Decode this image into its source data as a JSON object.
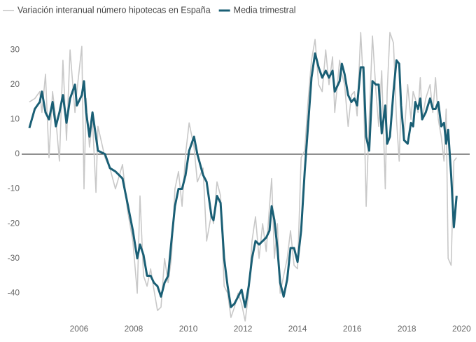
{
  "chart_data": {
    "type": "line",
    "x": [
      2004.18,
      2004.38,
      2004.56,
      2004.64,
      2004.77,
      2004.9,
      2005.03,
      2005.15,
      2005.28,
      2005.41,
      2005.54,
      2005.67,
      2005.85,
      2005.92,
      2006.1,
      2006.18,
      2006.26,
      2006.38,
      2006.49,
      2006.62,
      2006.69,
      2006.95,
      2007.13,
      2007.33,
      2007.59,
      2007.77,
      2007.97,
      2008.13,
      2008.23,
      2008.36,
      2008.49,
      2008.62,
      2008.74,
      2008.87,
      2009.0,
      2009.13,
      2009.26,
      2009.38,
      2009.51,
      2009.64,
      2009.77,
      2009.9,
      2010.03,
      2010.21,
      2010.33,
      2010.54,
      2010.67,
      2010.85,
      2010.92,
      2011.05,
      2011.18,
      2011.31,
      2011.44,
      2011.56,
      2011.69,
      2011.82,
      2011.95,
      2012.08,
      2012.21,
      2012.33,
      2012.46,
      2012.59,
      2012.72,
      2012.85,
      2012.97,
      2013.05,
      2013.15,
      2013.26,
      2013.36,
      2013.49,
      2013.62,
      2013.74,
      2013.87,
      2014.0,
      2014.13,
      2014.26,
      2014.38,
      2014.51,
      2014.64,
      2014.77,
      2014.9,
      2015.03,
      2015.15,
      2015.28,
      2015.36,
      2015.54,
      2015.62,
      2015.72,
      2015.85,
      2015.97,
      2016.08,
      2016.18,
      2016.31,
      2016.41,
      2016.51,
      2016.62,
      2016.74,
      2016.87,
      2016.97,
      2017.08,
      2017.21,
      2017.28,
      2017.38,
      2017.51,
      2017.62,
      2017.72,
      2017.79,
      2017.9,
      2018.03,
      2018.15,
      2018.23,
      2018.31,
      2018.41,
      2018.49,
      2018.56,
      2018.69,
      2018.85,
      2018.95,
      2019.05,
      2019.15,
      2019.26,
      2019.36,
      2019.44,
      2019.51,
      2019.62,
      2019.72,
      2019.82
    ],
    "series": [
      {
        "name": "Variación interanual número hipotecas en España",
        "color": "#c8c8c8",
        "width": 1.6,
        "values": [
          15,
          16,
          18,
          12,
          23,
          -1,
          18,
          10,
          -2,
          27,
          4,
          30,
          12,
          18,
          31,
          -10,
          16,
          2,
          10,
          -11,
          8,
          -1,
          -4,
          -10,
          -3,
          -16,
          -25,
          -40,
          -12,
          -35,
          -38,
          -33,
          -39,
          -45,
          -44,
          -30,
          -37,
          -30,
          -10,
          -5,
          -15,
          0,
          9,
          2,
          -8,
          -4,
          -25,
          -17,
          -20,
          -8,
          -12,
          -38,
          -40,
          -47,
          -44,
          -40,
          -43,
          -48,
          -40,
          -25,
          -18,
          -30,
          -20,
          -28,
          -15,
          -7,
          -30,
          -20,
          -40,
          -35,
          -30,
          -22,
          -32,
          -33,
          -1,
          1,
          15,
          27,
          33,
          20,
          18,
          30,
          20,
          28,
          12,
          27,
          23,
          20,
          8,
          17,
          18,
          11,
          35,
          20,
          -15,
          10,
          34,
          18,
          8,
          24,
          -10,
          18,
          35,
          32,
          10,
          -2,
          15,
          5,
          20,
          10,
          18,
          16,
          12,
          22,
          10,
          16,
          20,
          12,
          22,
          10,
          5,
          -2,
          13,
          -30,
          -32,
          -2,
          -1
        ]
      },
      {
        "name": "Media trimestral",
        "color": "#1a5f75",
        "width": 3,
        "values": [
          7.5,
          13,
          15,
          18,
          12,
          10,
          15,
          8,
          12,
          17,
          9,
          16,
          20,
          14,
          17,
          21,
          12,
          5,
          12,
          5,
          1,
          0,
          -4,
          -5,
          -7,
          -14,
          -22,
          -30,
          -26,
          -29,
          -35,
          -35,
          -37,
          -38,
          -41,
          -37,
          -35,
          -25,
          -15,
          -10,
          -10,
          -6,
          1,
          5,
          0,
          -6,
          -8,
          -18,
          -19,
          -12,
          -14,
          -30,
          -38,
          -44,
          -43,
          -41,
          -39,
          -44,
          -38,
          -30,
          -25,
          -26,
          -25,
          -24,
          -22,
          -15,
          -19,
          -27,
          -37,
          -41,
          -36,
          -27,
          -27,
          -31,
          -22,
          -5,
          8,
          22,
          29,
          25,
          22,
          24,
          22,
          24,
          18,
          21,
          26,
          23,
          17,
          15,
          16,
          14,
          25,
          25,
          5,
          1,
          21,
          20,
          20,
          6,
          14,
          3,
          5,
          18,
          27,
          26,
          14,
          4,
          3,
          9,
          8,
          15,
          13,
          16,
          10,
          12,
          16,
          13,
          13,
          15,
          8,
          9,
          3,
          7,
          -6,
          -21,
          -12
        ]
      }
    ],
    "xlim": [
      2003.9,
      2020.3
    ],
    "xticks": [
      2006,
      2008,
      2010,
      2012,
      2014,
      2016,
      2018,
      2020
    ],
    "ylim": [
      -48,
      36
    ],
    "yticks": [
      -40,
      -30,
      -20,
      -10,
      0,
      10,
      20,
      30
    ]
  }
}
